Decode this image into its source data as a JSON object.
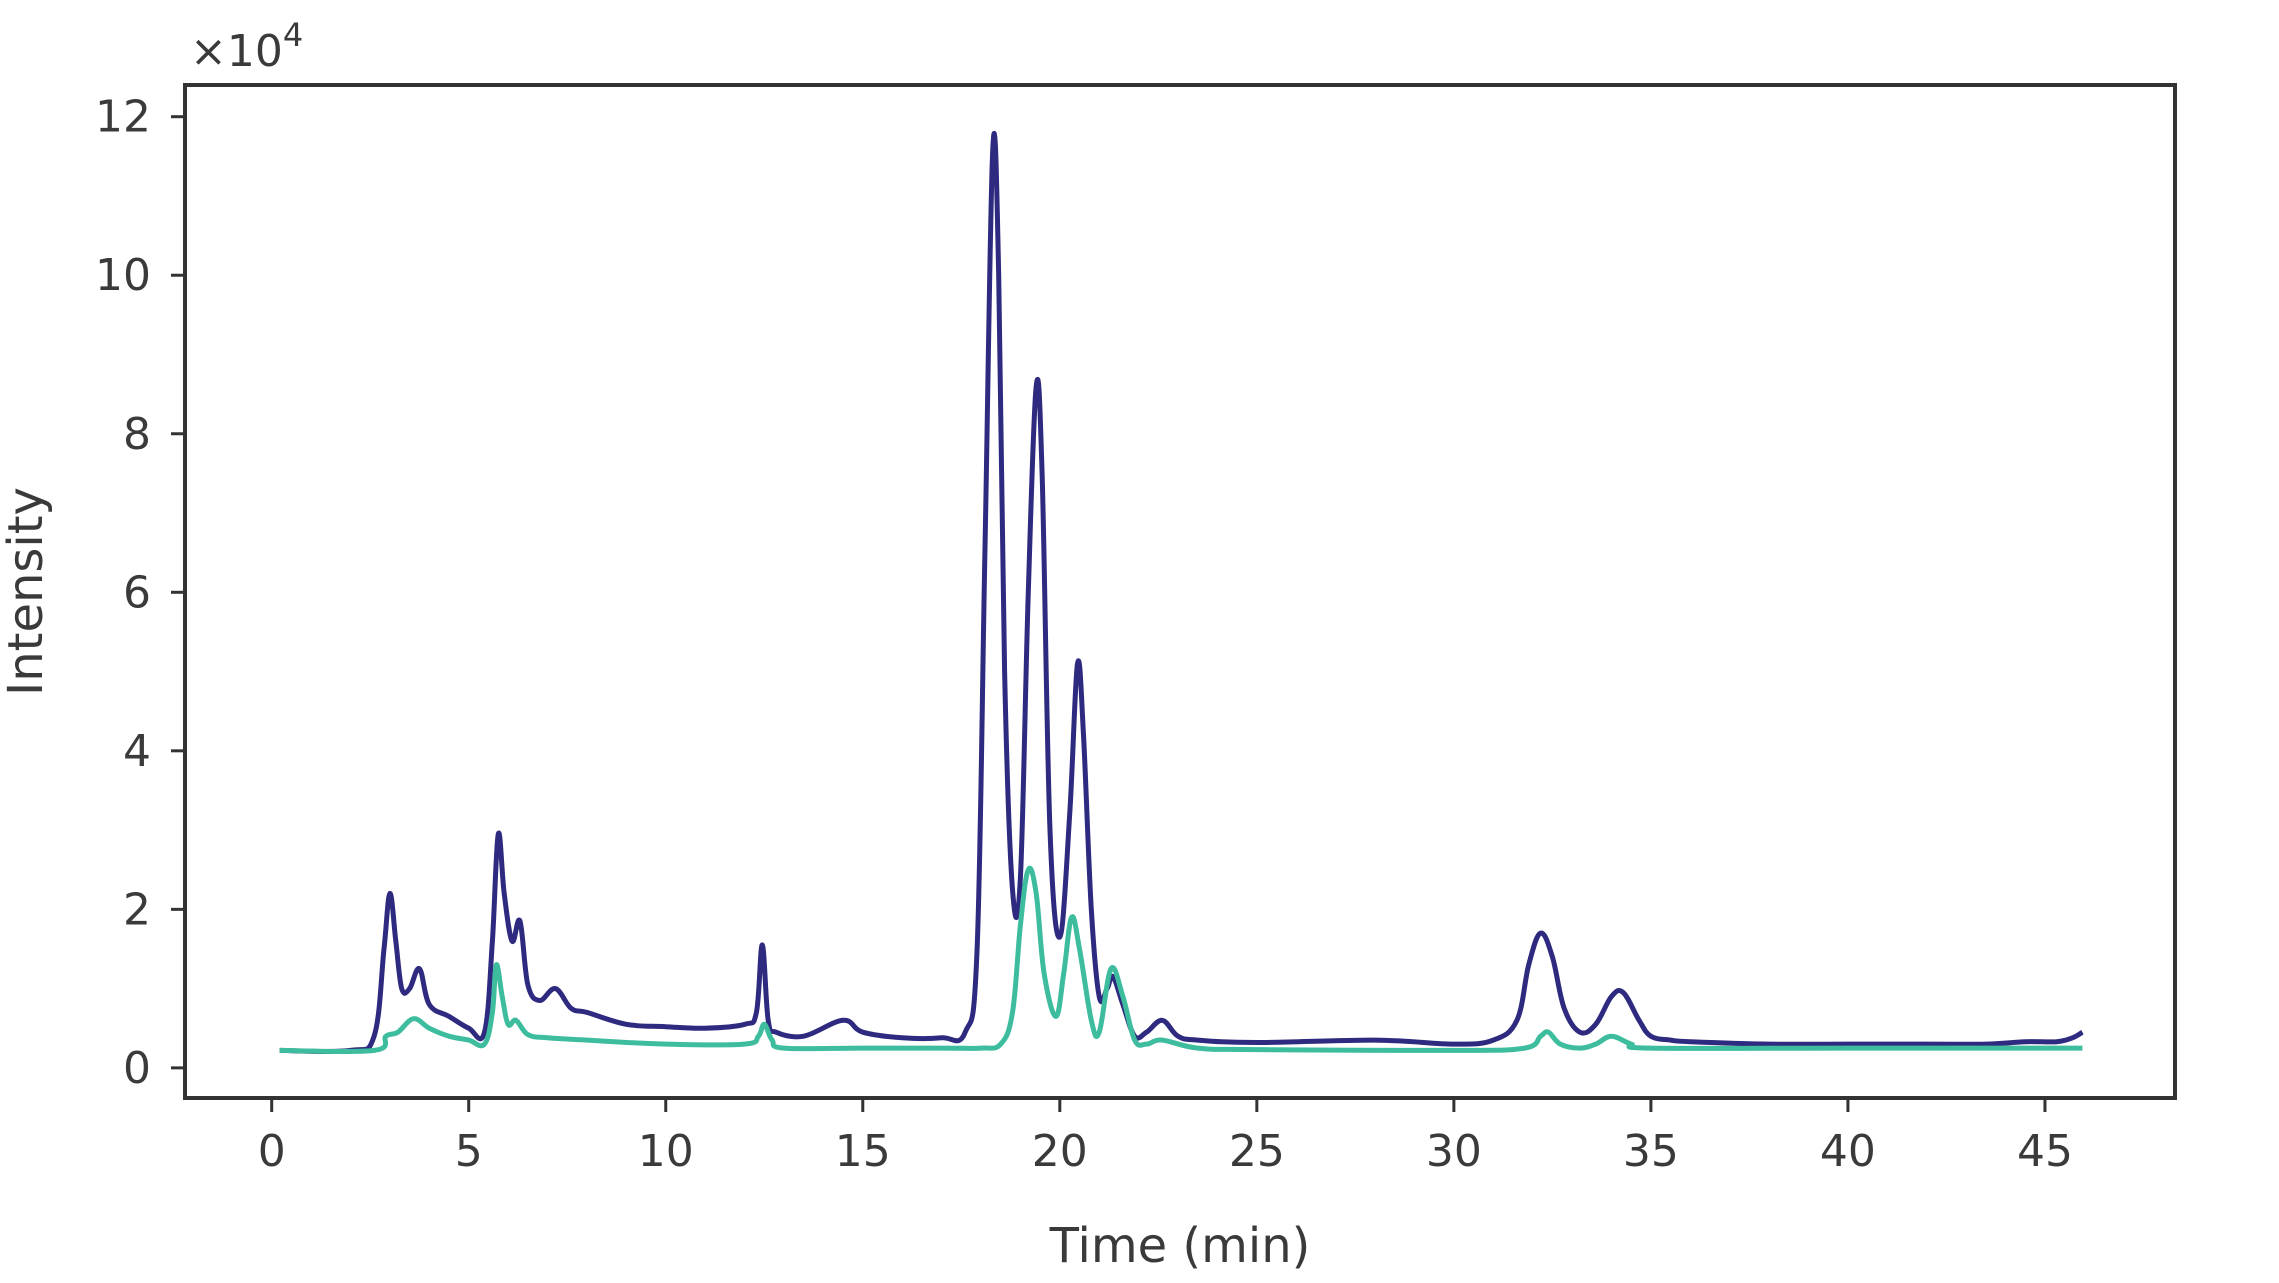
{
  "chart_data": {
    "type": "line",
    "xlabel": "Time (min)",
    "ylabel": "Intensity",
    "y_multiplier_label": "×10",
    "y_multiplier_exponent": "4",
    "xlim": [
      -2.2,
      48.3
    ],
    "ylim": [
      -0.38,
      12.4
    ],
    "x_ticks": [
      0,
      5,
      10,
      15,
      20,
      25,
      30,
      35,
      40,
      45
    ],
    "y_ticks": [
      0,
      2,
      4,
      6,
      8,
      10,
      12
    ],
    "grid": false,
    "legend": false,
    "series": [
      {
        "color": "#2e2a7f",
        "x": [
          0.2,
          2.0,
          2.6,
          2.85,
          3.0,
          3.15,
          3.3,
          3.5,
          3.75,
          4.0,
          4.5,
          5.0,
          5.4,
          5.6,
          5.75,
          5.9,
          6.1,
          6.3,
          6.5,
          6.8,
          7.2,
          7.6,
          8.0,
          9.0,
          10.0,
          11.0,
          12.0,
          12.3,
          12.45,
          12.6,
          12.8,
          13.5,
          14.5,
          15.0,
          16.0,
          17.0,
          17.6,
          17.9,
          18.1,
          18.3,
          18.45,
          18.6,
          18.8,
          19.0,
          19.2,
          19.4,
          19.55,
          19.75,
          20.0,
          20.25,
          20.45,
          20.6,
          20.8,
          21.0,
          21.2,
          21.35,
          21.6,
          21.9,
          22.2,
          22.6,
          23.0,
          23.5,
          25.0,
          28.0,
          30.0,
          31.0,
          31.6,
          31.9,
          32.2,
          32.5,
          32.8,
          33.2,
          33.6,
          34.0,
          34.3,
          34.7,
          35.0,
          35.5,
          36.0,
          38.0,
          40.0,
          42.0,
          43.5,
          44.5,
          45.3,
          45.7,
          45.95
        ],
        "y": [
          0.22,
          0.22,
          0.4,
          1.5,
          2.2,
          1.6,
          1.0,
          1.0,
          1.25,
          0.8,
          0.65,
          0.5,
          0.45,
          1.6,
          2.95,
          2.2,
          1.6,
          1.85,
          1.05,
          0.85,
          1.0,
          0.75,
          0.7,
          0.55,
          0.52,
          0.5,
          0.55,
          0.7,
          1.55,
          0.6,
          0.45,
          0.4,
          0.6,
          0.45,
          0.38,
          0.38,
          0.45,
          1.5,
          6.5,
          11.6,
          10.0,
          5.0,
          2.25,
          2.4,
          6.0,
          8.6,
          7.5,
          3.0,
          1.65,
          3.2,
          5.1,
          4.2,
          2.0,
          0.9,
          1.0,
          1.15,
          0.8,
          0.4,
          0.45,
          0.6,
          0.4,
          0.35,
          0.32,
          0.35,
          0.3,
          0.35,
          0.6,
          1.3,
          1.7,
          1.4,
          0.75,
          0.45,
          0.55,
          0.9,
          0.95,
          0.6,
          0.4,
          0.35,
          0.33,
          0.3,
          0.3,
          0.3,
          0.3,
          0.33,
          0.33,
          0.38,
          0.45
        ]
      },
      {
        "color": "#3dbd9d",
        "x": [
          0.2,
          2.6,
          2.9,
          3.2,
          3.6,
          4.0,
          4.5,
          5.0,
          5.4,
          5.6,
          5.7,
          5.85,
          6.0,
          6.2,
          6.5,
          7.0,
          8.0,
          10.0,
          12.0,
          12.35,
          12.5,
          12.7,
          13.0,
          15.0,
          17.0,
          18.0,
          18.5,
          18.8,
          19.0,
          19.2,
          19.4,
          19.6,
          19.9,
          20.1,
          20.3,
          20.5,
          20.8,
          21.0,
          21.3,
          21.6,
          21.9,
          22.2,
          22.6,
          23.5,
          25.0,
          30.0,
          31.8,
          32.2,
          32.4,
          32.7,
          33.2,
          33.6,
          34.0,
          34.5,
          35.0,
          40.0,
          45.95
        ],
        "y": [
          0.22,
          0.22,
          0.4,
          0.45,
          0.62,
          0.5,
          0.4,
          0.35,
          0.3,
          0.7,
          1.3,
          0.9,
          0.55,
          0.6,
          0.42,
          0.38,
          0.35,
          0.3,
          0.3,
          0.4,
          0.55,
          0.35,
          0.25,
          0.25,
          0.25,
          0.25,
          0.3,
          0.7,
          1.8,
          2.5,
          2.2,
          1.2,
          0.65,
          1.2,
          1.9,
          1.5,
          0.6,
          0.45,
          1.25,
          0.9,
          0.35,
          0.3,
          0.35,
          0.25,
          0.23,
          0.22,
          0.25,
          0.4,
          0.45,
          0.3,
          0.25,
          0.3,
          0.4,
          0.3,
          0.25,
          0.25,
          0.25
        ]
      }
    ]
  }
}
